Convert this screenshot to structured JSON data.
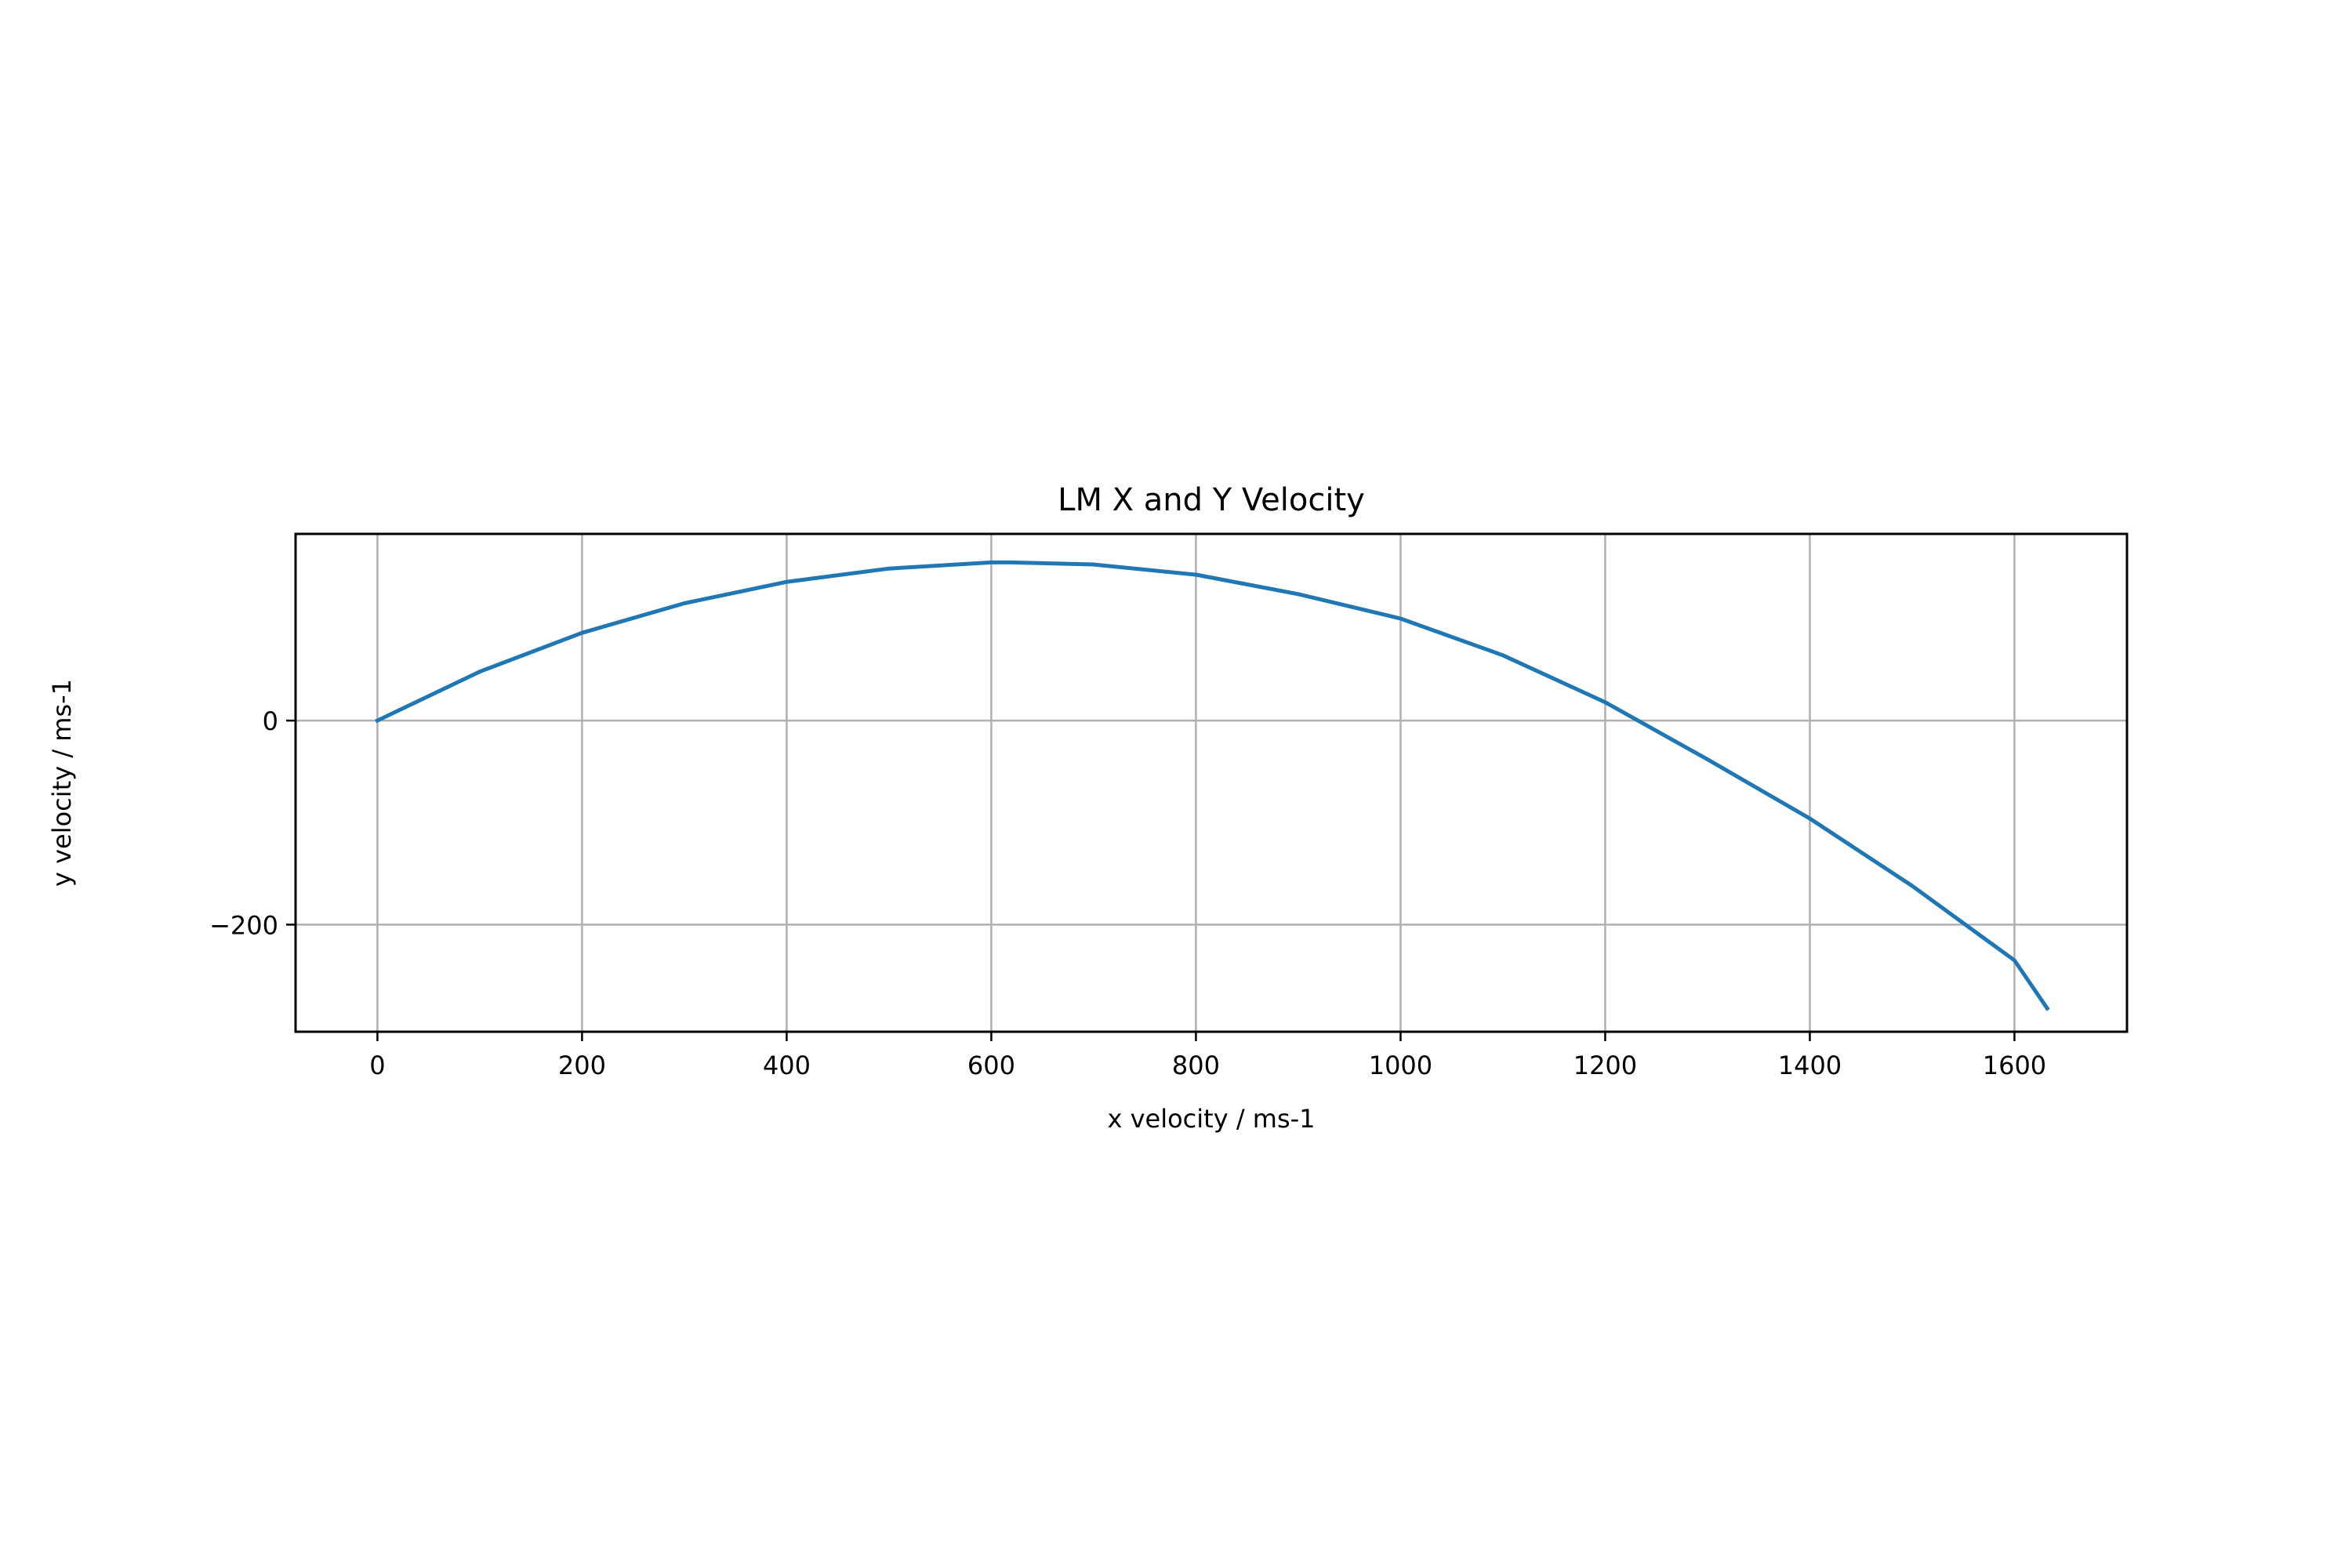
{
  "chart_data": {
    "type": "line",
    "title": "LM X and Y Velocity",
    "xlabel": "x velocity / ms-1",
    "ylabel": "y velocity / ms-1",
    "xlim": [
      -80,
      1710
    ],
    "ylim": [
      -305,
      183
    ],
    "xticks": [
      0,
      200,
      400,
      600,
      800,
      1000,
      1200,
      1400,
      1600
    ],
    "xtick_labels": [
      "0",
      "200",
      "400",
      "600",
      "800",
      "1000",
      "1200",
      "1400",
      "1600"
    ],
    "yticks": [
      -200,
      0
    ],
    "ytick_labels": [
      "−200",
      "0"
    ],
    "grid": true,
    "series": [
      {
        "color": "#1f77b4",
        "x": [
          0,
          100,
          200,
          300,
          400,
          500,
          600,
          620,
          700,
          800,
          900,
          1000,
          1100,
          1200,
          1300,
          1400,
          1500,
          1600,
          1632
        ],
        "y": [
          0,
          48,
          86,
          115,
          136,
          149,
          155,
          155,
          153,
          143,
          124,
          100,
          64,
          18,
          -38,
          -96,
          -162,
          -235,
          -282
        ]
      }
    ]
  }
}
